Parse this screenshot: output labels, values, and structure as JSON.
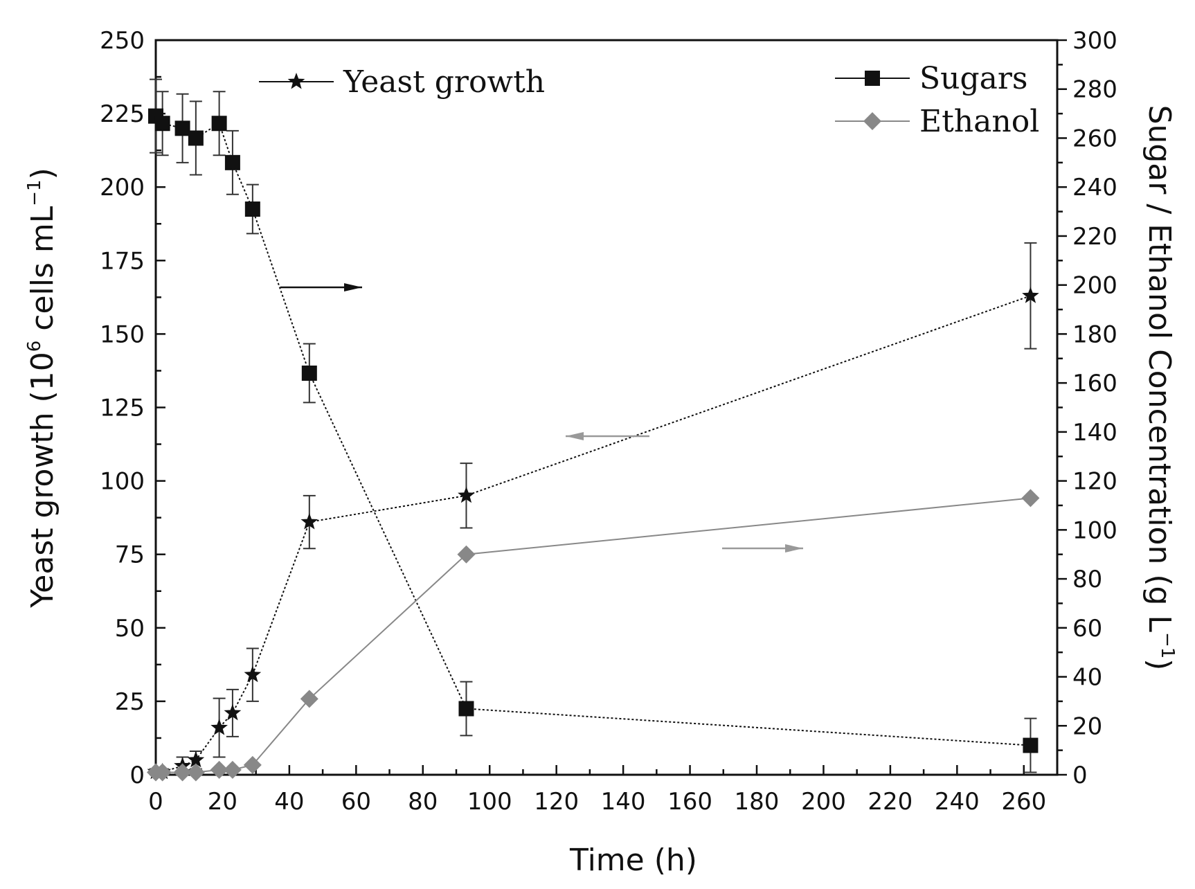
{
  "chart_data": {
    "type": "line",
    "xlabel": "Time (h)",
    "ylabel_left": {
      "main": "Yeast growth (10",
      "sup1": "6",
      "mid": " cells mL",
      "sup2": "−1",
      "end": ")"
    },
    "ylabel_right": {
      "main": "Sugar / Ethanol Concentration (g L",
      "sup": "−1",
      "end": ")"
    },
    "xlim": [
      0,
      270
    ],
    "ylim_left": [
      0,
      250
    ],
    "ylim_right": [
      0,
      300
    ],
    "x_ticks": [
      0,
      20,
      40,
      60,
      80,
      100,
      120,
      140,
      160,
      180,
      200,
      220,
      240,
      260
    ],
    "y_left_ticks": [
      0,
      25,
      50,
      75,
      100,
      125,
      150,
      175,
      200,
      225,
      250
    ],
    "y_right_ticks": [
      0,
      20,
      40,
      60,
      80,
      100,
      120,
      140,
      160,
      180,
      200,
      220,
      240,
      260,
      280,
      300
    ],
    "series": [
      {
        "name": "Yeast growth",
        "axis": "left",
        "marker": "star",
        "color": "#111111",
        "line_style": "dotted",
        "x": [
          0,
          2,
          8,
          12,
          19,
          23,
          29,
          46,
          93,
          262
        ],
        "y": [
          1,
          1,
          3,
          5,
          16,
          21,
          34,
          86,
          95,
          163
        ],
        "err": [
          1,
          1,
          3,
          3,
          10,
          8,
          9,
          9,
          11,
          18
        ]
      },
      {
        "name": "Sugars",
        "axis": "right",
        "marker": "square",
        "color": "#111111",
        "line_style": "dotted",
        "x": [
          0,
          2,
          8,
          12,
          19,
          23,
          29,
          46,
          93,
          262
        ],
        "y": [
          269,
          266,
          264,
          260,
          266,
          250,
          231,
          164,
          27,
          12
        ],
        "err": [
          15,
          13,
          14,
          15,
          13,
          13,
          10,
          12,
          11,
          11
        ]
      },
      {
        "name": "Ethanol",
        "axis": "right",
        "marker": "diamond",
        "color": "#888888",
        "line_style": "solid",
        "x": [
          0,
          2,
          8,
          12,
          19,
          23,
          29,
          46,
          93,
          262
        ],
        "y": [
          1,
          1,
          1,
          1,
          2,
          2,
          4,
          31,
          90,
          113
        ],
        "err": [
          0,
          0,
          0,
          0,
          0,
          0,
          0,
          0,
          0,
          0
        ]
      }
    ],
    "legend": [
      {
        "label": "Yeast growth",
        "placement": "top-left"
      },
      {
        "label": "Sugars",
        "placement": "top-right"
      },
      {
        "label": "Ethanol",
        "placement": "top-right"
      }
    ],
    "grid": false
  }
}
